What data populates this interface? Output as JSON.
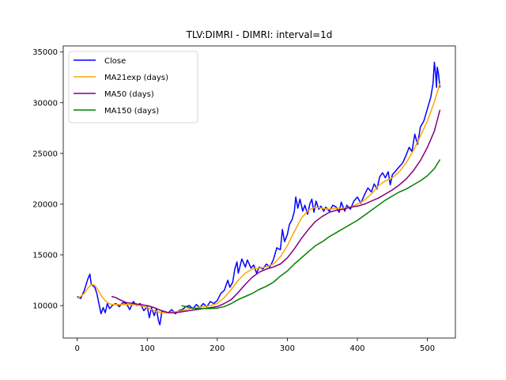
{
  "chart_data": {
    "type": "line",
    "title": "TLV:DIMRI - DIMRI: interval=1d",
    "xlabel": "",
    "ylabel": "",
    "xlim": [
      -20,
      540
    ],
    "ylim": [
      6800,
      35600
    ],
    "xticks": [
      0,
      100,
      200,
      300,
      400,
      500
    ],
    "yticks": [
      10000,
      15000,
      20000,
      25000,
      30000,
      35000
    ],
    "grid": false,
    "legend_position": "upper-left",
    "series": [
      {
        "name": "Close",
        "color": "#0000ff",
        "points": [
          [
            0,
            10900
          ],
          [
            5,
            10700
          ],
          [
            10,
            11500
          ],
          [
            15,
            12600
          ],
          [
            18,
            13100
          ],
          [
            20,
            12100
          ],
          [
            25,
            11800
          ],
          [
            28,
            11200
          ],
          [
            30,
            10500
          ],
          [
            34,
            9200
          ],
          [
            37,
            9800
          ],
          [
            40,
            9300
          ],
          [
            43,
            10200
          ],
          [
            46,
            9700
          ],
          [
            50,
            10000
          ],
          [
            55,
            10200
          ],
          [
            60,
            9900
          ],
          [
            65,
            10300
          ],
          [
            70,
            10200
          ],
          [
            75,
            9600
          ],
          [
            80,
            10400
          ],
          [
            85,
            10000
          ],
          [
            90,
            10200
          ],
          [
            95,
            9500
          ],
          [
            100,
            9900
          ],
          [
            103,
            8800
          ],
          [
            106,
            9800
          ],
          [
            110,
            9000
          ],
          [
            113,
            9700
          ],
          [
            116,
            8500
          ],
          [
            118,
            8100
          ],
          [
            121,
            9500
          ],
          [
            125,
            9400
          ],
          [
            130,
            9300
          ],
          [
            135,
            9600
          ],
          [
            140,
            9200
          ],
          [
            145,
            9500
          ],
          [
            150,
            9600
          ],
          [
            155,
            9900
          ],
          [
            160,
            10000
          ],
          [
            165,
            9700
          ],
          [
            170,
            10100
          ],
          [
            175,
            9800
          ],
          [
            180,
            10200
          ],
          [
            185,
            9900
          ],
          [
            190,
            10400
          ],
          [
            195,
            10200
          ],
          [
            200,
            10500
          ],
          [
            205,
            11200
          ],
          [
            210,
            11500
          ],
          [
            215,
            12500
          ],
          [
            218,
            11800
          ],
          [
            222,
            12300
          ],
          [
            225,
            13600
          ],
          [
            228,
            14300
          ],
          [
            230,
            13200
          ],
          [
            235,
            14600
          ],
          [
            240,
            13800
          ],
          [
            243,
            14500
          ],
          [
            248,
            13700
          ],
          [
            252,
            14000
          ],
          [
            256,
            13200
          ],
          [
            260,
            13800
          ],
          [
            265,
            13600
          ],
          [
            270,
            14100
          ],
          [
            275,
            13800
          ],
          [
            280,
            14500
          ],
          [
            285,
            15700
          ],
          [
            290,
            15500
          ],
          [
            293,
            17500
          ],
          [
            296,
            16300
          ],
          [
            300,
            17000
          ],
          [
            303,
            18000
          ],
          [
            307,
            18500
          ],
          [
            310,
            19300
          ],
          [
            312,
            20700
          ],
          [
            315,
            19600
          ],
          [
            318,
            20500
          ],
          [
            322,
            19300
          ],
          [
            325,
            19900
          ],
          [
            329,
            19000
          ],
          [
            332,
            20000
          ],
          [
            335,
            20500
          ],
          [
            338,
            19200
          ],
          [
            341,
            20300
          ],
          [
            345,
            19500
          ],
          [
            348,
            19800
          ],
          [
            352,
            19300
          ],
          [
            355,
            19700
          ],
          [
            360,
            19300
          ],
          [
            365,
            19900
          ],
          [
            370,
            19700
          ],
          [
            374,
            19200
          ],
          [
            377,
            20200
          ],
          [
            382,
            19300
          ],
          [
            385,
            19900
          ],
          [
            390,
            19500
          ],
          [
            395,
            20300
          ],
          [
            400,
            20700
          ],
          [
            405,
            20100
          ],
          [
            410,
            20900
          ],
          [
            415,
            21600
          ],
          [
            420,
            21200
          ],
          [
            424,
            22000
          ],
          [
            428,
            21500
          ],
          [
            432,
            22700
          ],
          [
            436,
            23100
          ],
          [
            440,
            22600
          ],
          [
            444,
            23200
          ],
          [
            447,
            21900
          ],
          [
            450,
            22900
          ],
          [
            455,
            23300
          ],
          [
            460,
            23700
          ],
          [
            465,
            24100
          ],
          [
            470,
            24900
          ],
          [
            474,
            25600
          ],
          [
            478,
            25200
          ],
          [
            482,
            26900
          ],
          [
            486,
            25900
          ],
          [
            490,
            27600
          ],
          [
            495,
            28200
          ],
          [
            500,
            29400
          ],
          [
            505,
            30600
          ],
          [
            508,
            31900
          ],
          [
            510,
            34000
          ],
          [
            512,
            32600
          ],
          [
            513,
            31500
          ],
          [
            514,
            33500
          ],
          [
            516,
            32800
          ],
          [
            518,
            31500
          ]
        ]
      },
      {
        "name": "MA21exp (days)",
        "color": "#ffa500",
        "points": [
          [
            0,
            10700
          ],
          [
            5,
            10900
          ],
          [
            10,
            11200
          ],
          [
            15,
            11700
          ],
          [
            20,
            12100
          ],
          [
            25,
            12000
          ],
          [
            30,
            11500
          ],
          [
            35,
            10900
          ],
          [
            40,
            10500
          ],
          [
            45,
            10200
          ],
          [
            50,
            10100
          ],
          [
            55,
            10100
          ],
          [
            60,
            10100
          ],
          [
            70,
            10100
          ],
          [
            80,
            10100
          ],
          [
            90,
            10000
          ],
          [
            100,
            9800
          ],
          [
            110,
            9500
          ],
          [
            120,
            9300
          ],
          [
            130,
            9300
          ],
          [
            140,
            9400
          ],
          [
            150,
            9500
          ],
          [
            160,
            9700
          ],
          [
            170,
            9800
          ],
          [
            180,
            9900
          ],
          [
            190,
            10000
          ],
          [
            200,
            10200
          ],
          [
            210,
            10800
          ],
          [
            220,
            11600
          ],
          [
            230,
            12500
          ],
          [
            240,
            13200
          ],
          [
            250,
            13600
          ],
          [
            260,
            13700
          ],
          [
            270,
            13800
          ],
          [
            280,
            14100
          ],
          [
            290,
            14800
          ],
          [
            300,
            15900
          ],
          [
            310,
            17300
          ],
          [
            320,
            18600
          ],
          [
            330,
            19400
          ],
          [
            340,
            19700
          ],
          [
            350,
            19600
          ],
          [
            360,
            19500
          ],
          [
            370,
            19600
          ],
          [
            380,
            19600
          ],
          [
            390,
            19700
          ],
          [
            400,
            20000
          ],
          [
            410,
            20400
          ],
          [
            420,
            21000
          ],
          [
            430,
            21800
          ],
          [
            440,
            22300
          ],
          [
            450,
            22600
          ],
          [
            460,
            23200
          ],
          [
            470,
            24100
          ],
          [
            480,
            25300
          ],
          [
            490,
            26700
          ],
          [
            500,
            28200
          ],
          [
            510,
            30100
          ],
          [
            518,
            31900
          ]
        ]
      },
      {
        "name": "MA50 (days)",
        "color": "#800080",
        "points": [
          [
            49,
            10900
          ],
          [
            55,
            10800
          ],
          [
            60,
            10600
          ],
          [
            70,
            10300
          ],
          [
            80,
            10200
          ],
          [
            90,
            10100
          ],
          [
            100,
            10000
          ],
          [
            110,
            9800
          ],
          [
            120,
            9500
          ],
          [
            130,
            9300
          ],
          [
            140,
            9300
          ],
          [
            150,
            9400
          ],
          [
            160,
            9500
          ],
          [
            170,
            9600
          ],
          [
            180,
            9700
          ],
          [
            190,
            9800
          ],
          [
            200,
            9900
          ],
          [
            210,
            10200
          ],
          [
            220,
            10600
          ],
          [
            230,
            11300
          ],
          [
            240,
            12100
          ],
          [
            250,
            12800
          ],
          [
            260,
            13300
          ],
          [
            270,
            13600
          ],
          [
            280,
            13800
          ],
          [
            290,
            14100
          ],
          [
            300,
            14700
          ],
          [
            310,
            15600
          ],
          [
            320,
            16600
          ],
          [
            330,
            17500
          ],
          [
            340,
            18300
          ],
          [
            350,
            18800
          ],
          [
            360,
            19200
          ],
          [
            370,
            19400
          ],
          [
            380,
            19500
          ],
          [
            390,
            19700
          ],
          [
            400,
            19800
          ],
          [
            410,
            20000
          ],
          [
            420,
            20300
          ],
          [
            430,
            20600
          ],
          [
            440,
            21000
          ],
          [
            450,
            21400
          ],
          [
            460,
            21900
          ],
          [
            470,
            22500
          ],
          [
            480,
            23300
          ],
          [
            490,
            24300
          ],
          [
            500,
            25600
          ],
          [
            510,
            27200
          ],
          [
            518,
            29300
          ]
        ]
      },
      {
        "name": "MA150 (days)",
        "color": "#008000",
        "points": [
          [
            149,
            10000
          ],
          [
            155,
            9900
          ],
          [
            160,
            9800
          ],
          [
            170,
            9700
          ],
          [
            180,
            9700
          ],
          [
            190,
            9700
          ],
          [
            200,
            9750
          ],
          [
            210,
            9900
          ],
          [
            220,
            10200
          ],
          [
            230,
            10600
          ],
          [
            240,
            10900
          ],
          [
            250,
            11200
          ],
          [
            260,
            11600
          ],
          [
            270,
            11900
          ],
          [
            280,
            12300
          ],
          [
            290,
            12900
          ],
          [
            300,
            13400
          ],
          [
            310,
            14100
          ],
          [
            320,
            14700
          ],
          [
            330,
            15300
          ],
          [
            340,
            15900
          ],
          [
            350,
            16300
          ],
          [
            360,
            16800
          ],
          [
            370,
            17200
          ],
          [
            380,
            17600
          ],
          [
            390,
            18000
          ],
          [
            400,
            18400
          ],
          [
            410,
            18900
          ],
          [
            420,
            19400
          ],
          [
            430,
            19900
          ],
          [
            440,
            20400
          ],
          [
            450,
            20800
          ],
          [
            460,
            21200
          ],
          [
            470,
            21500
          ],
          [
            480,
            21900
          ],
          [
            490,
            22300
          ],
          [
            500,
            22800
          ],
          [
            510,
            23500
          ],
          [
            518,
            24400
          ]
        ]
      }
    ]
  }
}
